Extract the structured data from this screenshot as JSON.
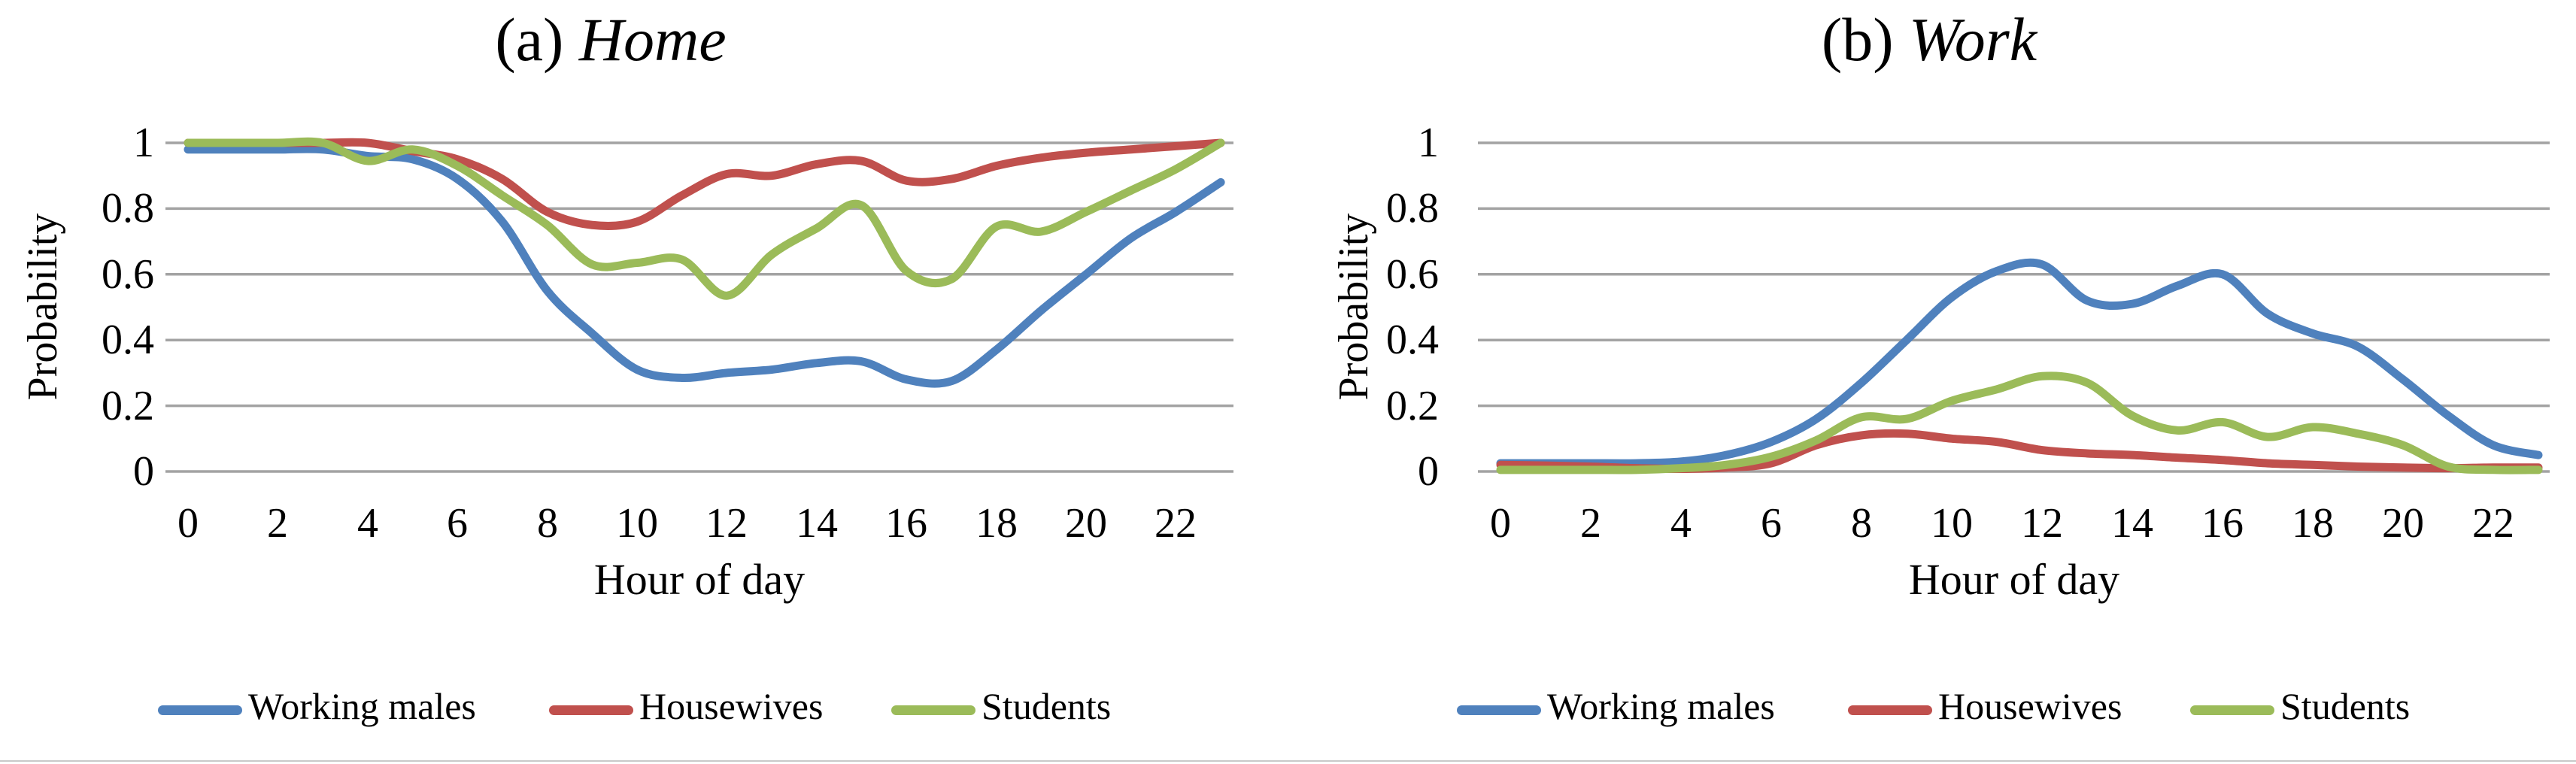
{
  "figure": {
    "panels": [
      {
        "title_prefix": "(a)",
        "title_name": "Home",
        "y_axis_label": "Probability",
        "x_axis_label": "Hour of day",
        "y_ticks": [
          "1",
          "0.8",
          "0.6",
          "0.4",
          "0.2",
          "0"
        ],
        "x_ticks": [
          "0",
          "2",
          "4",
          "6",
          "8",
          "10",
          "12",
          "14",
          "16",
          "18",
          "20",
          "22"
        ],
        "legend": [
          "Working males",
          "Housewives",
          "Students"
        ]
      },
      {
        "title_prefix": "(b)",
        "title_name": "Work",
        "y_axis_label": "Probability",
        "x_axis_label": "Hour of day",
        "y_ticks": [
          "1",
          "0.8",
          "0.6",
          "0.4",
          "0.2",
          "0"
        ],
        "x_ticks": [
          "0",
          "2",
          "4",
          "6",
          "8",
          "10",
          "12",
          "14",
          "16",
          "18",
          "20",
          "22"
        ],
        "legend": [
          "Working males",
          "Housewives",
          "Students"
        ]
      }
    ]
  },
  "colors": {
    "working_males": "#4F81BD",
    "housewives": "#C0504D",
    "students": "#9BBB59",
    "gridline": "#A3A3A3",
    "text": "#000000"
  },
  "chart_data": [
    {
      "type": "line",
      "title": "(a) Home",
      "xlabel": "Hour of day",
      "ylabel": "Probability",
      "ylim": [
        0,
        1
      ],
      "y_tick_step": 0.2,
      "grid": true,
      "legend_position": "bottom",
      "x": [
        0,
        1,
        2,
        3,
        4,
        5,
        6,
        7,
        8,
        9,
        10,
        11,
        12,
        13,
        14,
        15,
        16,
        17,
        18,
        19,
        20,
        21,
        22,
        23
      ],
      "series": [
        {
          "name": "Working males",
          "color": "#4F81BD",
          "values": [
            0.98,
            0.98,
            0.98,
            0.98,
            0.96,
            0.95,
            0.89,
            0.76,
            0.55,
            0.42,
            0.31,
            0.285,
            0.3,
            0.31,
            0.33,
            0.335,
            0.28,
            0.275,
            0.37,
            0.49,
            0.6,
            0.71,
            0.79,
            0.88
          ]
        },
        {
          "name": "Housewives",
          "color": "#C0504D",
          "values": [
            1.0,
            1.0,
            1.0,
            1.0,
            1.0,
            0.975,
            0.95,
            0.89,
            0.79,
            0.75,
            0.76,
            0.84,
            0.905,
            0.9,
            0.935,
            0.945,
            0.885,
            0.89,
            0.93,
            0.955,
            0.97,
            0.98,
            0.99,
            1.0
          ]
        },
        {
          "name": "Students",
          "color": "#9BBB59",
          "values": [
            1.0,
            1.0,
            1.0,
            1.0,
            0.945,
            0.98,
            0.93,
            0.84,
            0.75,
            0.63,
            0.635,
            0.645,
            0.535,
            0.66,
            0.74,
            0.81,
            0.61,
            0.585,
            0.745,
            0.73,
            0.79,
            0.855,
            0.92,
            1.0
          ]
        }
      ]
    },
    {
      "type": "line",
      "title": "(b) Work",
      "xlabel": "Hour of day",
      "ylabel": "Probability",
      "ylim": [
        0,
        1
      ],
      "y_tick_step": 0.2,
      "grid": true,
      "legend_position": "bottom",
      "x": [
        0,
        1,
        2,
        3,
        4,
        5,
        6,
        7,
        8,
        9,
        10,
        11,
        12,
        13,
        14,
        15,
        16,
        17,
        18,
        19,
        20,
        21,
        22,
        23
      ],
      "series": [
        {
          "name": "Working males",
          "color": "#4F81BD",
          "values": [
            0.025,
            0.025,
            0.025,
            0.025,
            0.03,
            0.05,
            0.09,
            0.16,
            0.27,
            0.4,
            0.53,
            0.61,
            0.63,
            0.52,
            0.51,
            0.565,
            0.6,
            0.48,
            0.42,
            0.38,
            0.28,
            0.17,
            0.08,
            0.05
          ]
        },
        {
          "name": "Housewives",
          "color": "#C0504D",
          "values": [
            0.02,
            0.018,
            0.015,
            0.01,
            0.008,
            0.012,
            0.025,
            0.08,
            0.11,
            0.115,
            0.1,
            0.09,
            0.065,
            0.055,
            0.05,
            0.042,
            0.035,
            0.025,
            0.02,
            0.015,
            0.012,
            0.01,
            0.012,
            0.012
          ]
        },
        {
          "name": "Students",
          "color": "#9BBB59",
          "values": [
            0.005,
            0.005,
            0.005,
            0.005,
            0.01,
            0.02,
            0.045,
            0.095,
            0.165,
            0.16,
            0.215,
            0.25,
            0.29,
            0.27,
            0.17,
            0.125,
            0.15,
            0.105,
            0.135,
            0.115,
            0.08,
            0.015,
            0.005,
            0.005
          ]
        }
      ]
    }
  ]
}
